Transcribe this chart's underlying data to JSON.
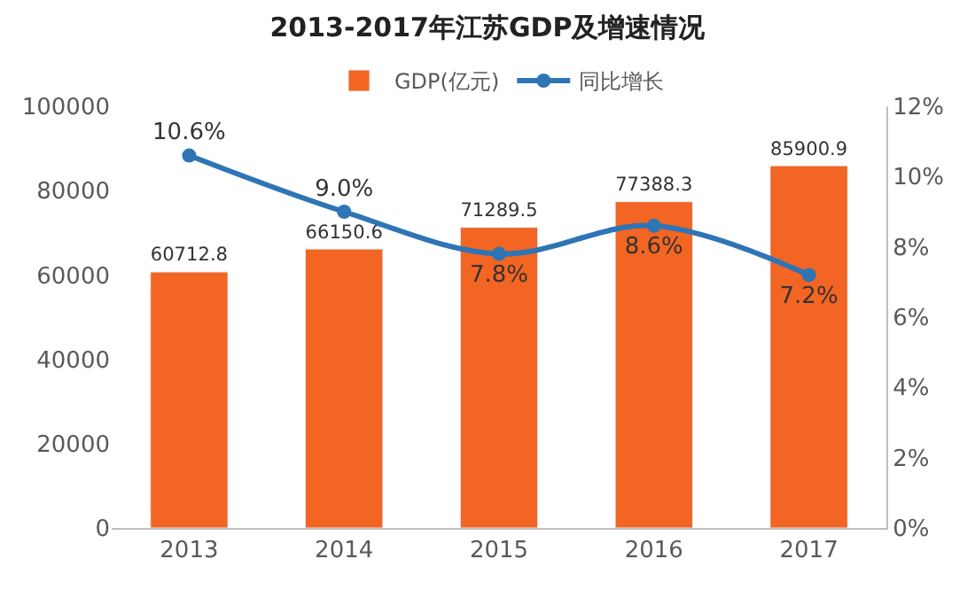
{
  "chart_data": {
    "type": "bar",
    "title": "2013-2017年江苏GDP及增速情况",
    "categories": [
      "2013",
      "2014",
      "2015",
      "2016",
      "2017"
    ],
    "series": [
      {
        "name": "GDP(亿元)",
        "color": "#f26522",
        "values": [
          60712.8,
          66150.6,
          71289.5,
          77388.3,
          85900.9
        ],
        "value_labels": [
          "60712.8",
          "66150.6",
          "71289.5",
          "77388.3",
          "85900.9"
        ]
      },
      {
        "name": "同比增长",
        "type": "line",
        "axis": "y2",
        "color": "#2e75b6",
        "marker": "circle",
        "values": [
          10.6,
          9.0,
          7.8,
          8.6,
          7.2
        ],
        "value_labels": [
          "10.6%",
          "9.0%",
          "7.8%",
          "8.6%",
          "7.2%"
        ]
      }
    ],
    "ylim": [
      0,
      100000
    ],
    "yticks": [
      0,
      20000,
      40000,
      60000,
      80000,
      100000
    ],
    "y2lim": [
      0,
      12
    ],
    "y2ticks": [
      {
        "value": 0,
        "label": "0%"
      },
      {
        "value": 2,
        "label": "2%"
      },
      {
        "value": 4,
        "label": "4%"
      },
      {
        "value": 6,
        "label": "6%"
      },
      {
        "value": 8,
        "label": "8%"
      },
      {
        "value": 10,
        "label": "10%"
      },
      {
        "value": 12,
        "label": "12%"
      }
    ],
    "legend": "top",
    "grid": false
  }
}
